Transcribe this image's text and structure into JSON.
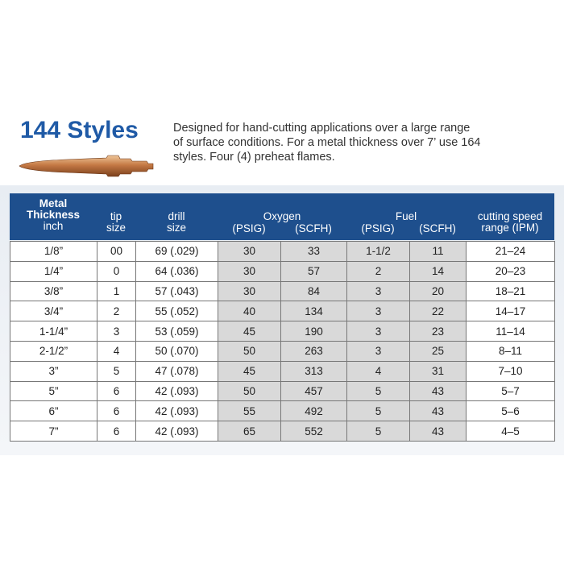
{
  "header": {
    "title": "144 Styles",
    "description": [
      "Designed for hand-cutting applications over a large range",
      "of surface conditions. For a metal thickness over 7’ use 164",
      "styles. Four (4) preheat flames."
    ]
  },
  "table": {
    "headers": {
      "thickness": [
        "Metal",
        "Thickness",
        "inch"
      ],
      "tip": [
        "tip",
        "size"
      ],
      "drill": [
        "drill",
        "size"
      ],
      "oxygen": "Oxygen",
      "fuel": "Fuel",
      "psig": "(PSIG)",
      "scfh": "(SCFH)",
      "fuel_psig": "(PSIG)",
      "fuel_scfh": "(SCFH)",
      "speed": [
        "cutting speed",
        "range (IPM)"
      ]
    },
    "rows": [
      [
        "1/8”",
        "00",
        "69 (.029)",
        "30",
        "33",
        "1-1/2",
        "11",
        "21–24"
      ],
      [
        "1/4”",
        "0",
        "64 (.036)",
        "30",
        "57",
        "2",
        "14",
        "20–23"
      ],
      [
        "3/8”",
        "1",
        "57 (.043)",
        "30",
        "84",
        "3",
        "20",
        "18–21"
      ],
      [
        "3/4”",
        "2",
        "55 (.052)",
        "40",
        "134",
        "3",
        "22",
        "14–17"
      ],
      [
        "1-1/4”",
        "3",
        "53 (.059)",
        "45",
        "190",
        "3",
        "23",
        "11–14"
      ],
      [
        "2-1/2”",
        "4",
        "50 (.070)",
        "50",
        "263",
        "3",
        "25",
        "8–11"
      ],
      [
        "3”",
        "5",
        "47 (.078)",
        "45",
        "313",
        "4",
        "31",
        "7–10"
      ],
      [
        "5”",
        "6",
        "42 (.093)",
        "50",
        "457",
        "5",
        "43",
        "5–7"
      ],
      [
        "6”",
        "6",
        "42 (.093)",
        "55",
        "492",
        "5",
        "43",
        "5–6"
      ],
      [
        "7”",
        "6",
        "42 (.093)",
        "65",
        "552",
        "5",
        "43",
        "4–5"
      ]
    ]
  }
}
